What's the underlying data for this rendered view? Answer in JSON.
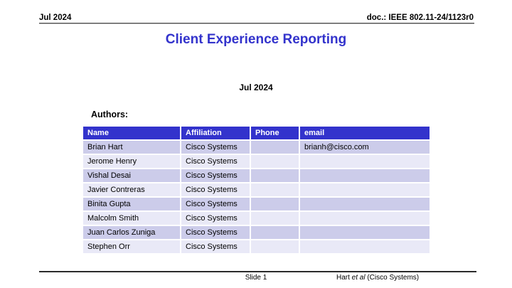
{
  "header": {
    "left": "Jul 2024",
    "right": "doc.: IEEE 802.11-24/1123r0"
  },
  "title": "Client Experience Reporting",
  "date_line": "Jul 2024",
  "authors_label": "Authors:",
  "table": {
    "columns": [
      "Name",
      "Affiliation",
      "Phone",
      "email"
    ],
    "rows": [
      [
        "Brian Hart",
        "Cisco Systems",
        "",
        "brianh@cisco.com"
      ],
      [
        "Jerome Henry",
        "Cisco Systems",
        "",
        ""
      ],
      [
        "Vishal Desai",
        "Cisco Systems",
        "",
        ""
      ],
      [
        "Javier Contreras",
        "Cisco Systems",
        "",
        ""
      ],
      [
        "Binita Gupta",
        "Cisco Systems",
        "",
        ""
      ],
      [
        "Malcolm Smith",
        "Cisco Systems",
        "",
        ""
      ],
      [
        "Juan Carlos Zuniga",
        "Cisco Systems",
        "",
        ""
      ],
      [
        "Stephen Orr",
        "Cisco Systems",
        "",
        ""
      ]
    ]
  },
  "footer": {
    "slide": "Slide 1",
    "attribution": {
      "prefix": "Hart ",
      "italic": "et al",
      "suffix": " (Cisco Systems)"
    }
  },
  "colors": {
    "title": "#3333cc",
    "table_header_bg": "#3333cc",
    "table_header_text": "#ffffff",
    "row_odd": "#ccccea",
    "row_even": "#e9e9f7"
  }
}
